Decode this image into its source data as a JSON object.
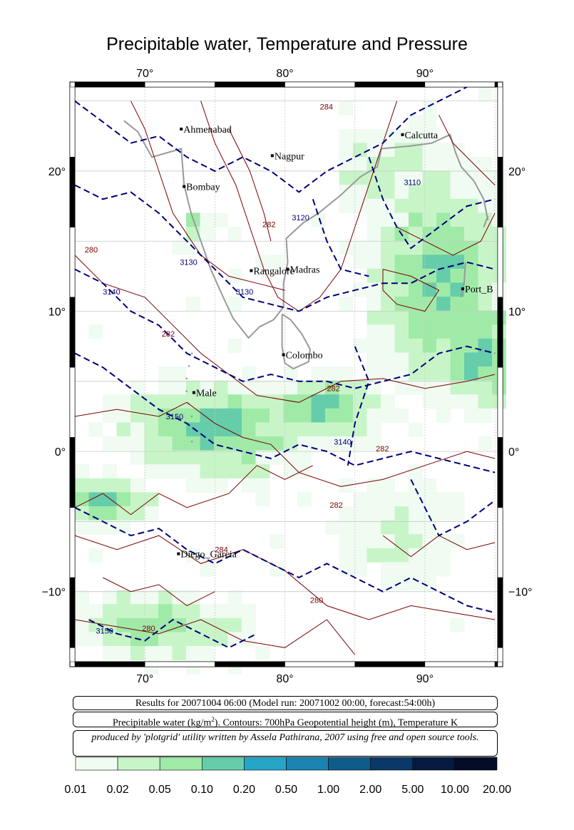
{
  "title": "Precipitable water, Temperature and Pressure",
  "axes": {
    "lon_ticks": [
      "70°",
      "80°",
      "90°"
    ],
    "lat_ticks": [
      "20°",
      "10°",
      "0°",
      "−10°"
    ],
    "lon_range": [
      65,
      96
    ],
    "lat_range": [
      -15,
      26
    ]
  },
  "cities": [
    {
      "name": "Ahmenabad",
      "lon": 72.6,
      "lat": 23.0
    },
    {
      "name": "Nagpur",
      "lon": 79.1,
      "lat": 21.1
    },
    {
      "name": "Calcutta",
      "lon": 88.4,
      "lat": 22.6
    },
    {
      "name": "Bombay",
      "lon": 72.8,
      "lat": 18.9
    },
    {
      "name": "Rangalore",
      "lon": 77.6,
      "lat": 12.9
    },
    {
      "name": "Madras",
      "lon": 80.2,
      "lat": 13.0
    },
    {
      "name": "Port_B",
      "lon": 92.7,
      "lat": 11.6
    },
    {
      "name": "Colombo",
      "lon": 79.9,
      "lat": 6.9
    },
    {
      "name": "Male",
      "lon": 73.5,
      "lat": 4.2
    },
    {
      "name": "Diego_Garcia",
      "lon": 72.4,
      "lat": -7.3
    }
  ],
  "contour_labels": {
    "height": [
      "3110",
      "3120",
      "3130",
      "3130",
      "3140",
      "3150",
      "3140",
      "3150"
    ],
    "temperature": [
      "284",
      "282",
      "280",
      "282",
      "282",
      "282",
      "282",
      "280",
      "284",
      "280"
    ]
  },
  "info": {
    "results": "Results for 20071004 06:00 (Model run: 20071002 00:00, forecast:54:00h)",
    "description_prefix": "Precipitable water (kg/m",
    "description_sup": "2",
    "description_suffix": ").  Contours: 700hPa Geopotential height (m), Temperature K",
    "credit": "produced by 'plotgrid' utility written by Assela Pathirana, 2007 using free and open source tools."
  },
  "colorbar": {
    "labels": [
      "0.01",
      "0.02",
      "0.05",
      "0.10",
      "0.20",
      "0.50",
      "1.00",
      "2.00",
      "5.00",
      "10.00",
      "20.00"
    ],
    "colors": [
      "#f0fbf2",
      "#c8f5c8",
      "#a0eaa8",
      "#66cdaa",
      "#26a6c6",
      "#1a83b0",
      "#0e5c8a",
      "#0a3868",
      "#06193f",
      "#040c28",
      "#000010"
    ]
  },
  "colors": {
    "temperature_contour": "#7a0000",
    "height_contour": "#00007a",
    "coastline": "#999999",
    "grid": "#c8c8c8"
  }
}
